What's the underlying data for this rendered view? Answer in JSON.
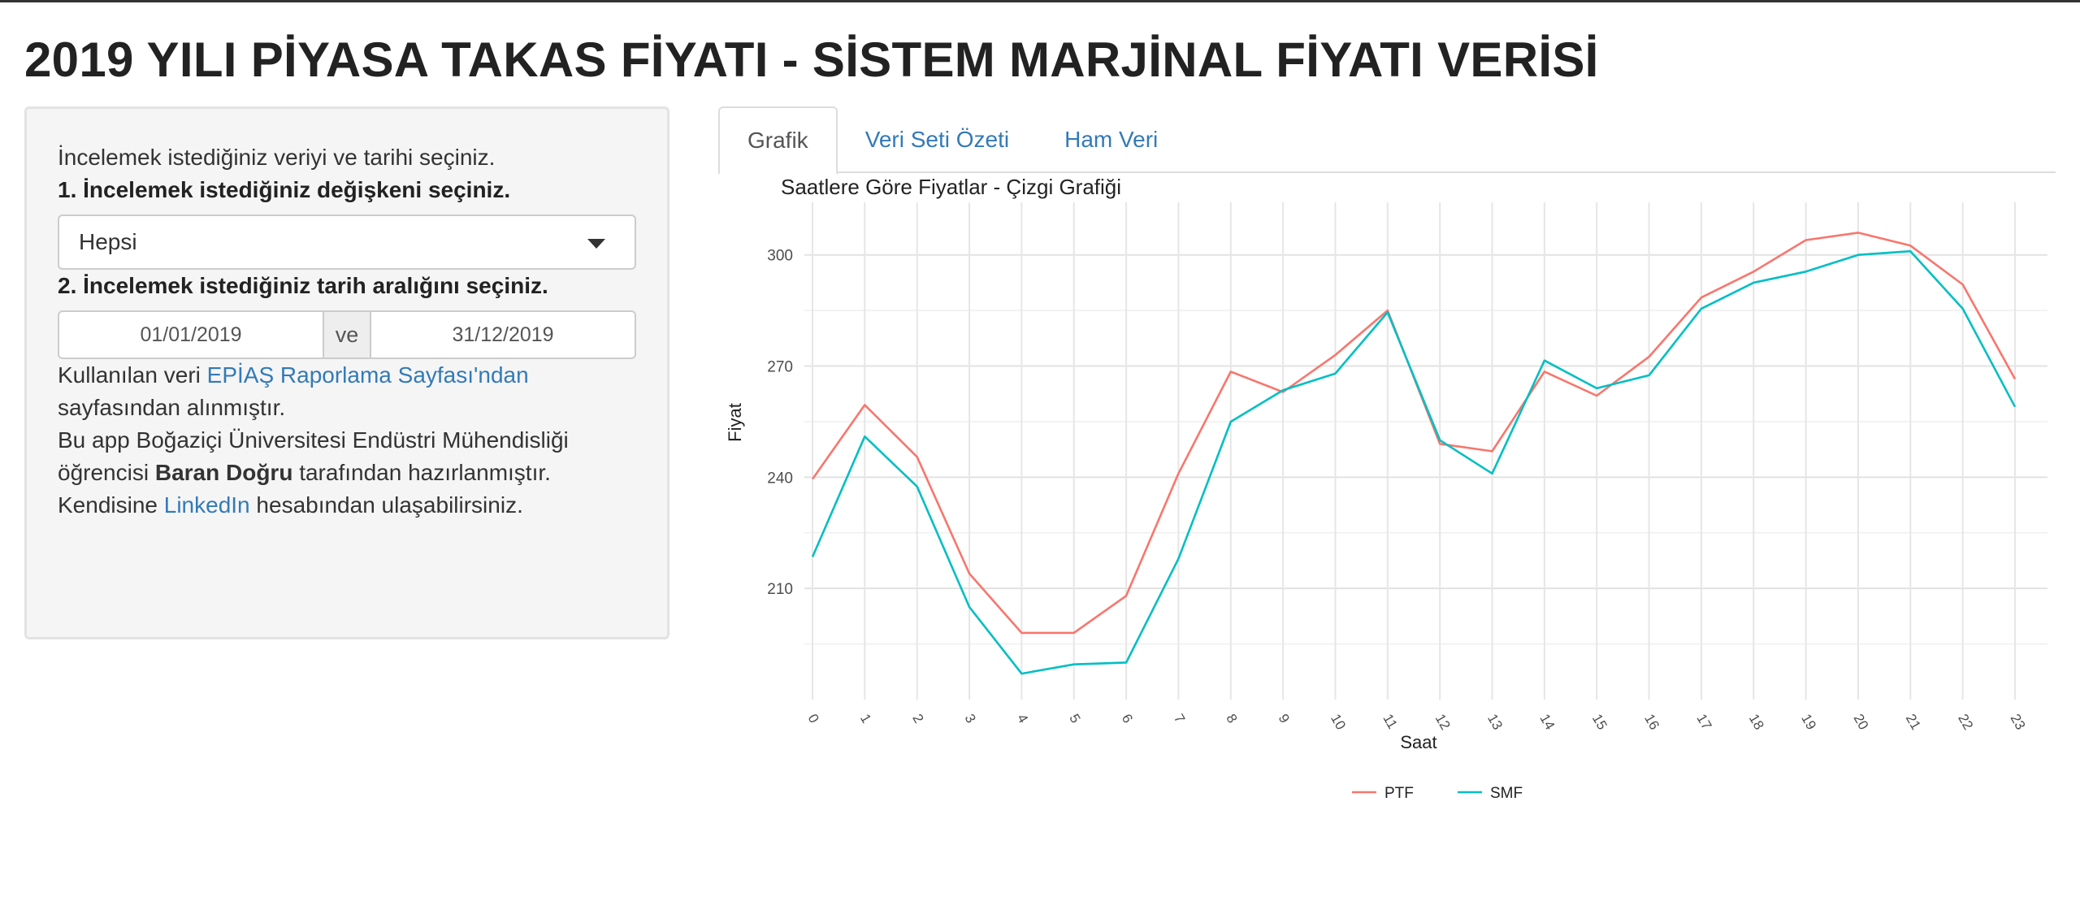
{
  "page": {
    "title": "2019 YILI PİYASA TAKAS FİYATI - SİSTEM MARJİNAL FİYATI VERİSİ"
  },
  "sidebar": {
    "intro": "İncelemek istediğiniz veriyi ve tarihi seçiniz.",
    "q1_label": "1. İncelemek istediğiniz değişkeni seçiniz.",
    "variable_value": "Hepsi",
    "q2_label": "2. İncelemek istediğiniz tarih aralığını seçiniz.",
    "date_start": "01/01/2019",
    "date_sep": "ve",
    "date_end": "31/12/2019",
    "source_prefix": "Kullanılan veri ",
    "source_link": "EPİAŞ Raporlama Sayfası'ndan",
    "source_suffix": "sayfasından alınmıştır.",
    "author_prefix": "Bu app Boğaziçi Üniversitesi Endüstri Mühendisliği öğrencisi ",
    "author_name": "Baran Doğru",
    "author_suffix": " tarafından hazırlanmıştır.",
    "contact_prefix": "Kendisine ",
    "contact_link": "LinkedIn",
    "contact_suffix": " hesabından ulaşabilirsiniz."
  },
  "tabs": [
    {
      "label": "Grafik",
      "active": true
    },
    {
      "label": "Veri Seti Özeti",
      "active": false
    },
    {
      "label": "Ham Veri",
      "active": false
    }
  ],
  "colors": {
    "link": "#337ab7",
    "ptf": "#F8766D",
    "smf": "#00BFC4"
  },
  "chart_data": {
    "type": "line",
    "title": "Saatlere Göre Fiyatlar - Çizgi Grafiği",
    "xlabel": "Saat",
    "ylabel": "Fiyat",
    "x": [
      0,
      1,
      2,
      3,
      4,
      5,
      6,
      7,
      8,
      9,
      10,
      11,
      12,
      13,
      14,
      15,
      16,
      17,
      18,
      19,
      20,
      21,
      22,
      23
    ],
    "ylim": [
      180,
      312
    ],
    "yticks": [
      210,
      240,
      270,
      300
    ],
    "grid": true,
    "legend_position": "bottom",
    "series": [
      {
        "name": "PTF",
        "color": "#F8766D",
        "values": [
          239.5,
          259.5,
          245.5,
          214,
          198,
          198,
          208,
          241,
          268.5,
          263,
          273,
          285,
          249,
          247,
          268.5,
          262,
          272.5,
          288.5,
          295.5,
          304,
          306,
          302.5,
          292,
          266.5
        ]
      },
      {
        "name": "SMF",
        "color": "#00BFC4",
        "values": [
          218.5,
          251,
          237.5,
          205,
          187,
          189.5,
          190,
          218,
          255,
          263.5,
          268,
          284.5,
          250,
          241,
          271.5,
          264,
          267.5,
          285.5,
          292.5,
          295.5,
          300,
          301,
          285.5,
          259
        ]
      }
    ]
  }
}
